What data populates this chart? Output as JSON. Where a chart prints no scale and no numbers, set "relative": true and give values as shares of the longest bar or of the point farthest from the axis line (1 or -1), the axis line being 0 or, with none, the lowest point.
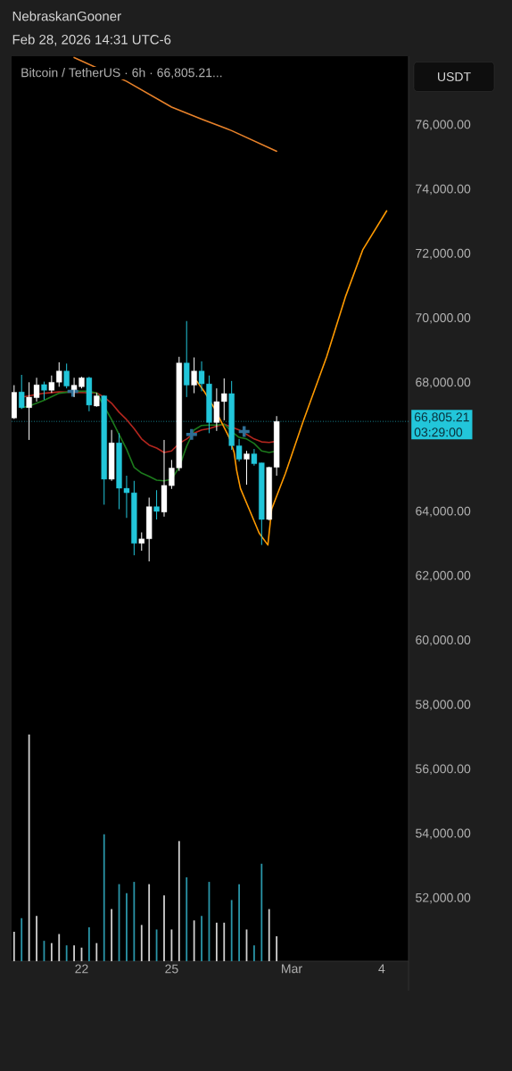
{
  "chart_data": [
    {
      "type": "candlestick",
      "title": "Bitcoin / TetherUS · 6h · 66,805.21...",
      "ylabel": "USDT",
      "annotations": [
        "NebraskanGooner",
        "Feb 28, 2026 14:31 UTC-6",
        "03:29:00"
      ],
      "x": [
        "2026-02-19T18:00",
        "2026-02-20T00:00",
        "2026-02-20T06:00",
        "2026-02-20T12:00",
        "2026-02-20T18:00",
        "2026-02-21T00:00",
        "2026-02-21T06:00",
        "2026-02-21T12:00",
        "2026-02-21T18:00",
        "2026-02-22T00:00",
        "2026-02-22T06:00",
        "2026-02-22T12:00",
        "2026-02-22T18:00",
        "2026-02-23T00:00",
        "2026-02-23T06:00",
        "2026-02-23T12:00",
        "2026-02-23T18:00",
        "2026-02-24T00:00",
        "2026-02-24T06:00",
        "2026-02-24T12:00",
        "2026-02-24T18:00",
        "2026-02-25T00:00",
        "2026-02-25T06:00",
        "2026-02-25T12:00",
        "2026-02-25T18:00",
        "2026-02-26T00:00",
        "2026-02-26T06:00",
        "2026-02-26T12:00",
        "2026-02-26T18:00",
        "2026-02-27T00:00",
        "2026-02-27T06:00",
        "2026-02-27T12:00",
        "2026-02-27T18:00",
        "2026-02-28T00:00",
        "2026-02-28T06:00",
        "2026-02-28T12:00"
      ],
      "ohlc": [
        [
          66910,
          67930,
          66880,
          67710
        ],
        [
          67720,
          68250,
          67190,
          67230
        ],
        [
          67230,
          68020,
          66230,
          67560
        ],
        [
          67540,
          68160,
          67420,
          67940
        ],
        [
          67950,
          68040,
          67480,
          67770
        ],
        [
          67770,
          68230,
          67690,
          68020
        ],
        [
          68020,
          68640,
          67880,
          68370
        ],
        [
          68370,
          68600,
          67830,
          67900
        ],
        [
          67790,
          68160,
          67560,
          67930
        ],
        [
          67880,
          68190,
          67830,
          68160
        ],
        [
          68160,
          68190,
          67120,
          67310
        ],
        [
          67280,
          67690,
          67260,
          67600
        ],
        [
          67600,
          67620,
          64220,
          65010
        ],
        [
          65010,
          66540,
          64960,
          66140
        ],
        [
          66140,
          66440,
          64080,
          64730
        ],
        [
          64730,
          65120,
          63810,
          64590
        ],
        [
          64590,
          64960,
          62650,
          63020
        ],
        [
          63020,
          63360,
          62790,
          63160
        ],
        [
          63160,
          64440,
          62460,
          64160
        ],
        [
          64160,
          64670,
          63760,
          64010
        ],
        [
          63990,
          66230,
          63850,
          64820
        ],
        [
          64810,
          65610,
          64710,
          65360
        ],
        [
          65360,
          68810,
          65270,
          68620
        ],
        [
          68620,
          69920,
          67560,
          67930
        ],
        [
          67930,
          68790,
          67680,
          68370
        ],
        [
          68370,
          68670,
          67740,
          67970
        ],
        [
          67970,
          68230,
          66440,
          66770
        ],
        [
          66770,
          67830,
          66510,
          67420
        ],
        [
          67420,
          68140,
          66840,
          67670
        ],
        [
          67670,
          68060,
          65920,
          66050
        ],
        [
          66050,
          66260,
          65560,
          65630
        ],
        [
          65630,
          65890,
          64840,
          65800
        ],
        [
          65800,
          65950,
          65430,
          65490
        ],
        [
          65520,
          65520,
          62970,
          63760
        ],
        [
          63760,
          65400,
          63730,
          65380
        ],
        [
          65380,
          66970,
          65120,
          66805.21
        ]
      ],
      "colors": [
        "#ffffff",
        "#22c6da",
        "#ffffff",
        "#ffffff",
        "#22c6da",
        "#ffffff",
        "#ffffff",
        "#22c6da",
        "#ffffff",
        "#ffffff",
        "#22c6da",
        "#ffffff",
        "#22c6da",
        "#ffffff",
        "#22c6da",
        "#22c6da",
        "#22c6da",
        "#ffffff",
        "#ffffff",
        "#22c6da",
        "#ffffff",
        "#ffffff",
        "#ffffff",
        "#22c6da",
        "#ffffff",
        "#22c6da",
        "#22c6da",
        "#ffffff",
        "#ffffff",
        "#22c6da",
        "#22c6da",
        "#ffffff",
        "#22c6da",
        "#22c6da",
        "#ffffff",
        "#ffffff"
      ],
      "series": [
        {
          "type": "line",
          "color": "#b3261e",
          "x": [
            "2026-02-20T00:00",
            "2026-02-20T06:00",
            "2026-02-20T18:00",
            "2026-02-21T06:00",
            "2026-02-21T18:00",
            "2026-02-22T06:00",
            "2026-02-22T12:00",
            "2026-02-22T18:00",
            "2026-02-23T00:00",
            "2026-02-23T06:00",
            "2026-02-23T12:00",
            "2026-02-23T18:00",
            "2026-02-24T00:00",
            "2026-02-24T06:00",
            "2026-02-24T12:00",
            "2026-02-24T18:00",
            "2026-02-25T00:00",
            "2026-02-25T06:00",
            "2026-02-25T12:00",
            "2026-02-25T18:00",
            "2026-02-26T00:00",
            "2026-02-26T06:00",
            "2026-02-26T12:00",
            "2026-02-26T18:00",
            "2026-02-27T00:00",
            "2026-02-27T06:00",
            "2026-02-27T12:00",
            "2026-02-27T18:00",
            "2026-02-28T00:00",
            "2026-02-28T06:00",
            "2026-02-28T12:00"
          ],
          "values": [
            67560,
            67600,
            67680,
            67720,
            null,
            null,
            67690,
            67560,
            67370,
            67090,
            66860,
            66580,
            66260,
            66070,
            65980,
            65840,
            65890,
            66120,
            66260,
            66440,
            66540,
            66580,
            66660,
            66720,
            66630,
            66540,
            66400,
            66260,
            66170,
            66150,
            66190
          ]
        },
        {
          "type": "line",
          "color": "#1c7a1c",
          "x": [
            "2026-02-20T00:00",
            "2026-02-20T06:00",
            "2026-02-20T18:00",
            "2026-02-21T06:00",
            "2026-02-21T18:00",
            "2026-02-22T06:00",
            "2026-02-22T12:00",
            "2026-02-22T18:00",
            "2026-02-23T00:00",
            "2026-02-23T06:00",
            "2026-02-23T12:00",
            "2026-02-23T18:00",
            "2026-02-24T00:00",
            "2026-02-24T06:00",
            "2026-02-24T12:00",
            "2026-02-24T18:00",
            "2026-02-25T00:00",
            "2026-02-25T06:00",
            "2026-02-25T12:00",
            "2026-02-25T18:00",
            "2026-02-26T00:00",
            "2026-02-26T06:00",
            "2026-02-26T12:00",
            "2026-02-26T18:00",
            "2026-02-27T00:00",
            "2026-02-27T06:00",
            "2026-02-27T12:00",
            "2026-02-27T18:00",
            "2026-02-28T00:00",
            "2026-02-28T06:00",
            "2026-02-28T12:00"
          ],
          "values": [
            67230,
            67280,
            67460,
            67680,
            67740,
            67740,
            67690,
            null,
            66860,
            66400,
            65940,
            65380,
            65200,
            65100,
            64980,
            64960,
            65010,
            65380,
            66030,
            66540,
            66680,
            66690,
            66690,
            66720,
            66490,
            66310,
            66260,
            66120,
            65890,
            65840,
            65890
          ]
        },
        {
          "type": "line",
          "color": "#e8822a",
          "x": [
            "2026-02-21T18:00",
            "2026-02-23T12:00",
            "2026-02-25T00:00",
            "2026-02-26T00:00",
            "2026-02-27T00:00",
            "2026-02-28T12:00"
          ],
          "values": [
            78100,
            77360,
            76560,
            76190,
            75830,
            75190
          ]
        },
        {
          "type": "line",
          "color": "#ff9a00",
          "x": [
            "2026-02-25T20:00",
            "2026-02-26T02:00",
            "2026-02-26T10:00",
            "2026-02-26T16:00",
            "2026-02-26T22:00",
            "2026-02-27T02:00",
            "2026-02-27T04:00",
            "2026-02-27T07:00",
            "2026-02-27T15:00",
            "2026-02-27T22:00",
            "2026-02-28T05:00",
            "2026-02-28T08:00",
            "2026-02-28T19:00",
            "2026-03-01T09:00",
            "2026-03-02T04:00",
            "2026-03-02T19:00",
            "2026-03-03T09:00",
            "2026-03-04T04:00"
          ],
          "values": [
            68060,
            67740,
            67230,
            66770,
            66310,
            65840,
            65290,
            64730,
            63990,
            63340,
            62970,
            64080,
            65190,
            66780,
            68810,
            70670,
            72140,
            73340
          ]
        },
        {
          "type": "scatter",
          "marker": "cross",
          "color": "#2f6f96",
          "x": [
            "2026-02-21T17:00",
            "2026-02-25T16:00",
            "2026-02-27T10:00"
          ],
          "values": [
            67740,
            66400,
            66490
          ]
        }
      ],
      "ref_lines": [
        {
          "axis": "y",
          "value": 66805.21,
          "label": "66,805.21",
          "color": "#22c6da",
          "line_style": "dotted"
        }
      ],
      "xlim": [
        "2026-02-19T16:00",
        "2026-03-04T21:30"
      ],
      "xticks": [
        {
          "value": "2026-02-22",
          "label": "22"
        },
        {
          "value": "2026-02-25",
          "label": "25"
        },
        {
          "value": "2026-03-01",
          "label": "Mar"
        },
        {
          "value": "2026-03-04",
          "label": "4"
        }
      ],
      "ylim": [
        50050,
        78140
      ],
      "yticks": [
        {
          "value": 52000,
          "label": "52,000.00"
        },
        {
          "value": 54000,
          "label": "54,000.00"
        },
        {
          "value": 56000,
          "label": "56,000.00"
        },
        {
          "value": 58000,
          "label": "58,000.00"
        },
        {
          "value": 60000,
          "label": "60,000.00"
        },
        {
          "value": 62000,
          "label": "62,000.00"
        },
        {
          "value": 64000,
          "label": "64,000.00"
        },
        {
          "value": 68000,
          "label": "68,000.00"
        },
        {
          "value": 70000,
          "label": "70,000.00"
        },
        {
          "value": 72000,
          "label": "72,000.00"
        },
        {
          "value": 74000,
          "label": "74,000.00"
        },
        {
          "value": 76000,
          "label": "76,000.00"
        }
      ]
    },
    {
      "type": "bar",
      "relative": true,
      "x": [
        "2026-02-19T18:00",
        "2026-02-20T00:00",
        "2026-02-20T06:00",
        "2026-02-20T12:00",
        "2026-02-20T18:00",
        "2026-02-21T00:00",
        "2026-02-21T06:00",
        "2026-02-21T12:00",
        "2026-02-21T18:00",
        "2026-02-22T00:00",
        "2026-02-22T06:00",
        "2026-02-22T12:00",
        "2026-02-22T18:00",
        "2026-02-23T00:00",
        "2026-02-23T06:00",
        "2026-02-23T12:00",
        "2026-02-23T18:00",
        "2026-02-24T00:00",
        "2026-02-24T06:00",
        "2026-02-24T12:00",
        "2026-02-24T18:00",
        "2026-02-25T00:00",
        "2026-02-25T06:00",
        "2026-02-25T12:00",
        "2026-02-25T18:00",
        "2026-02-26T00:00",
        "2026-02-26T06:00",
        "2026-02-26T12:00",
        "2026-02-26T18:00",
        "2026-02-27T00:00",
        "2026-02-27T06:00",
        "2026-02-27T12:00",
        "2026-02-27T18:00",
        "2026-02-28T00:00",
        "2026-02-28T06:00",
        "2026-02-28T12:00"
      ],
      "values": [
        0.13,
        0.19,
        1,
        0.2,
        0.09,
        0.08,
        0.12,
        0.07,
        0.07,
        0.06,
        0.15,
        0.08,
        0.56,
        0.23,
        0.34,
        0.3,
        0.35,
        0.16,
        0.34,
        0.14,
        0.29,
        0.14,
        0.53,
        0.37,
        0.18,
        0.2,
        0.35,
        0.17,
        0.17,
        0.27,
        0.34,
        0.14,
        0.07,
        0.43,
        0.23,
        0.11
      ],
      "colors": [
        "#d0d0d0",
        "#2a95a8",
        "#d0d0d0",
        "#d0d0d0",
        "#2a95a8",
        "#d0d0d0",
        "#d0d0d0",
        "#2a95a8",
        "#d0d0d0",
        "#d0d0d0",
        "#2a95a8",
        "#d0d0d0",
        "#2a95a8",
        "#d0d0d0",
        "#2a95a8",
        "#2a95a8",
        "#2a95a8",
        "#d0d0d0",
        "#d0d0d0",
        "#2a95a8",
        "#d0d0d0",
        "#d0d0d0",
        "#d0d0d0",
        "#2a95a8",
        "#d0d0d0",
        "#2a95a8",
        "#2a95a8",
        "#d0d0d0",
        "#d0d0d0",
        "#2a95a8",
        "#2a95a8",
        "#d0d0d0",
        "#2a95a8",
        "#2a95a8",
        "#d0d0d0",
        "#d0d0d0"
      ],
      "xlim": [
        "2026-02-19T16:00",
        "2026-03-04T21:30"
      ]
    }
  ]
}
